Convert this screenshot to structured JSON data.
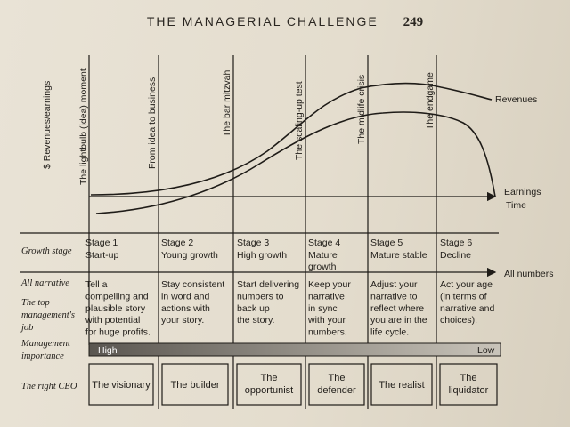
{
  "header": {
    "title": "THE MANAGERIAL CHALLENGE",
    "page_number": "249"
  },
  "figure": {
    "y_axis_label": "$ Revenues/earnings",
    "moment_labels": [
      "The lightbulb (idea) moment",
      "From idea to business",
      "The bar mitzvah",
      "The scaling-up test",
      "The midlife crisis",
      "The endgame"
    ],
    "curve_labels": {
      "revenues": "Revenues",
      "earnings": "Earnings"
    },
    "time_label": "Time",
    "all_numbers_label": "All numbers",
    "row_labels": {
      "growth_stage": "Growth stage",
      "all_narrative": "All narrative",
      "job": [
        "The top",
        "management's",
        "job"
      ],
      "importance": [
        "Management",
        "importance"
      ],
      "ceo": "The right CEO"
    },
    "stages": [
      {
        "stage": "Stage 1",
        "name": [
          "Start-up"
        ],
        "job": [
          "Tell a",
          "compelling and",
          "plausible story",
          "with potential",
          "for huge profits."
        ],
        "ceo": [
          "The visionary"
        ]
      },
      {
        "stage": "Stage 2",
        "name": [
          "Young growth"
        ],
        "job": [
          "Stay consistent",
          "in word and",
          "actions with",
          "your story."
        ],
        "ceo": [
          "The builder"
        ]
      },
      {
        "stage": "Stage 3",
        "name": [
          "High growth"
        ],
        "job": [
          "Start delivering",
          "numbers to",
          "back up",
          "the story."
        ],
        "ceo": [
          "The",
          "opportunist"
        ]
      },
      {
        "stage": "Stage 4",
        "name": [
          "Mature",
          "growth"
        ],
        "job": [
          "Keep your",
          "narrative",
          "in sync",
          "with your",
          "numbers."
        ],
        "ceo": [
          "The",
          "defender"
        ]
      },
      {
        "stage": "Stage 5",
        "name": [
          "Mature stable"
        ],
        "job": [
          "Adjust your",
          "narrative to",
          "reflect where",
          "you are in the",
          "life cycle."
        ],
        "ceo": [
          "The realist"
        ]
      },
      {
        "stage": "Stage 6",
        "name": [
          "Decline"
        ],
        "job": [
          "Act your age",
          "(in terms of",
          "narrative and",
          "choices)."
        ],
        "ceo": [
          "The",
          "liquidator"
        ]
      }
    ],
    "importance": {
      "high": "High",
      "low": "Low"
    }
  }
}
